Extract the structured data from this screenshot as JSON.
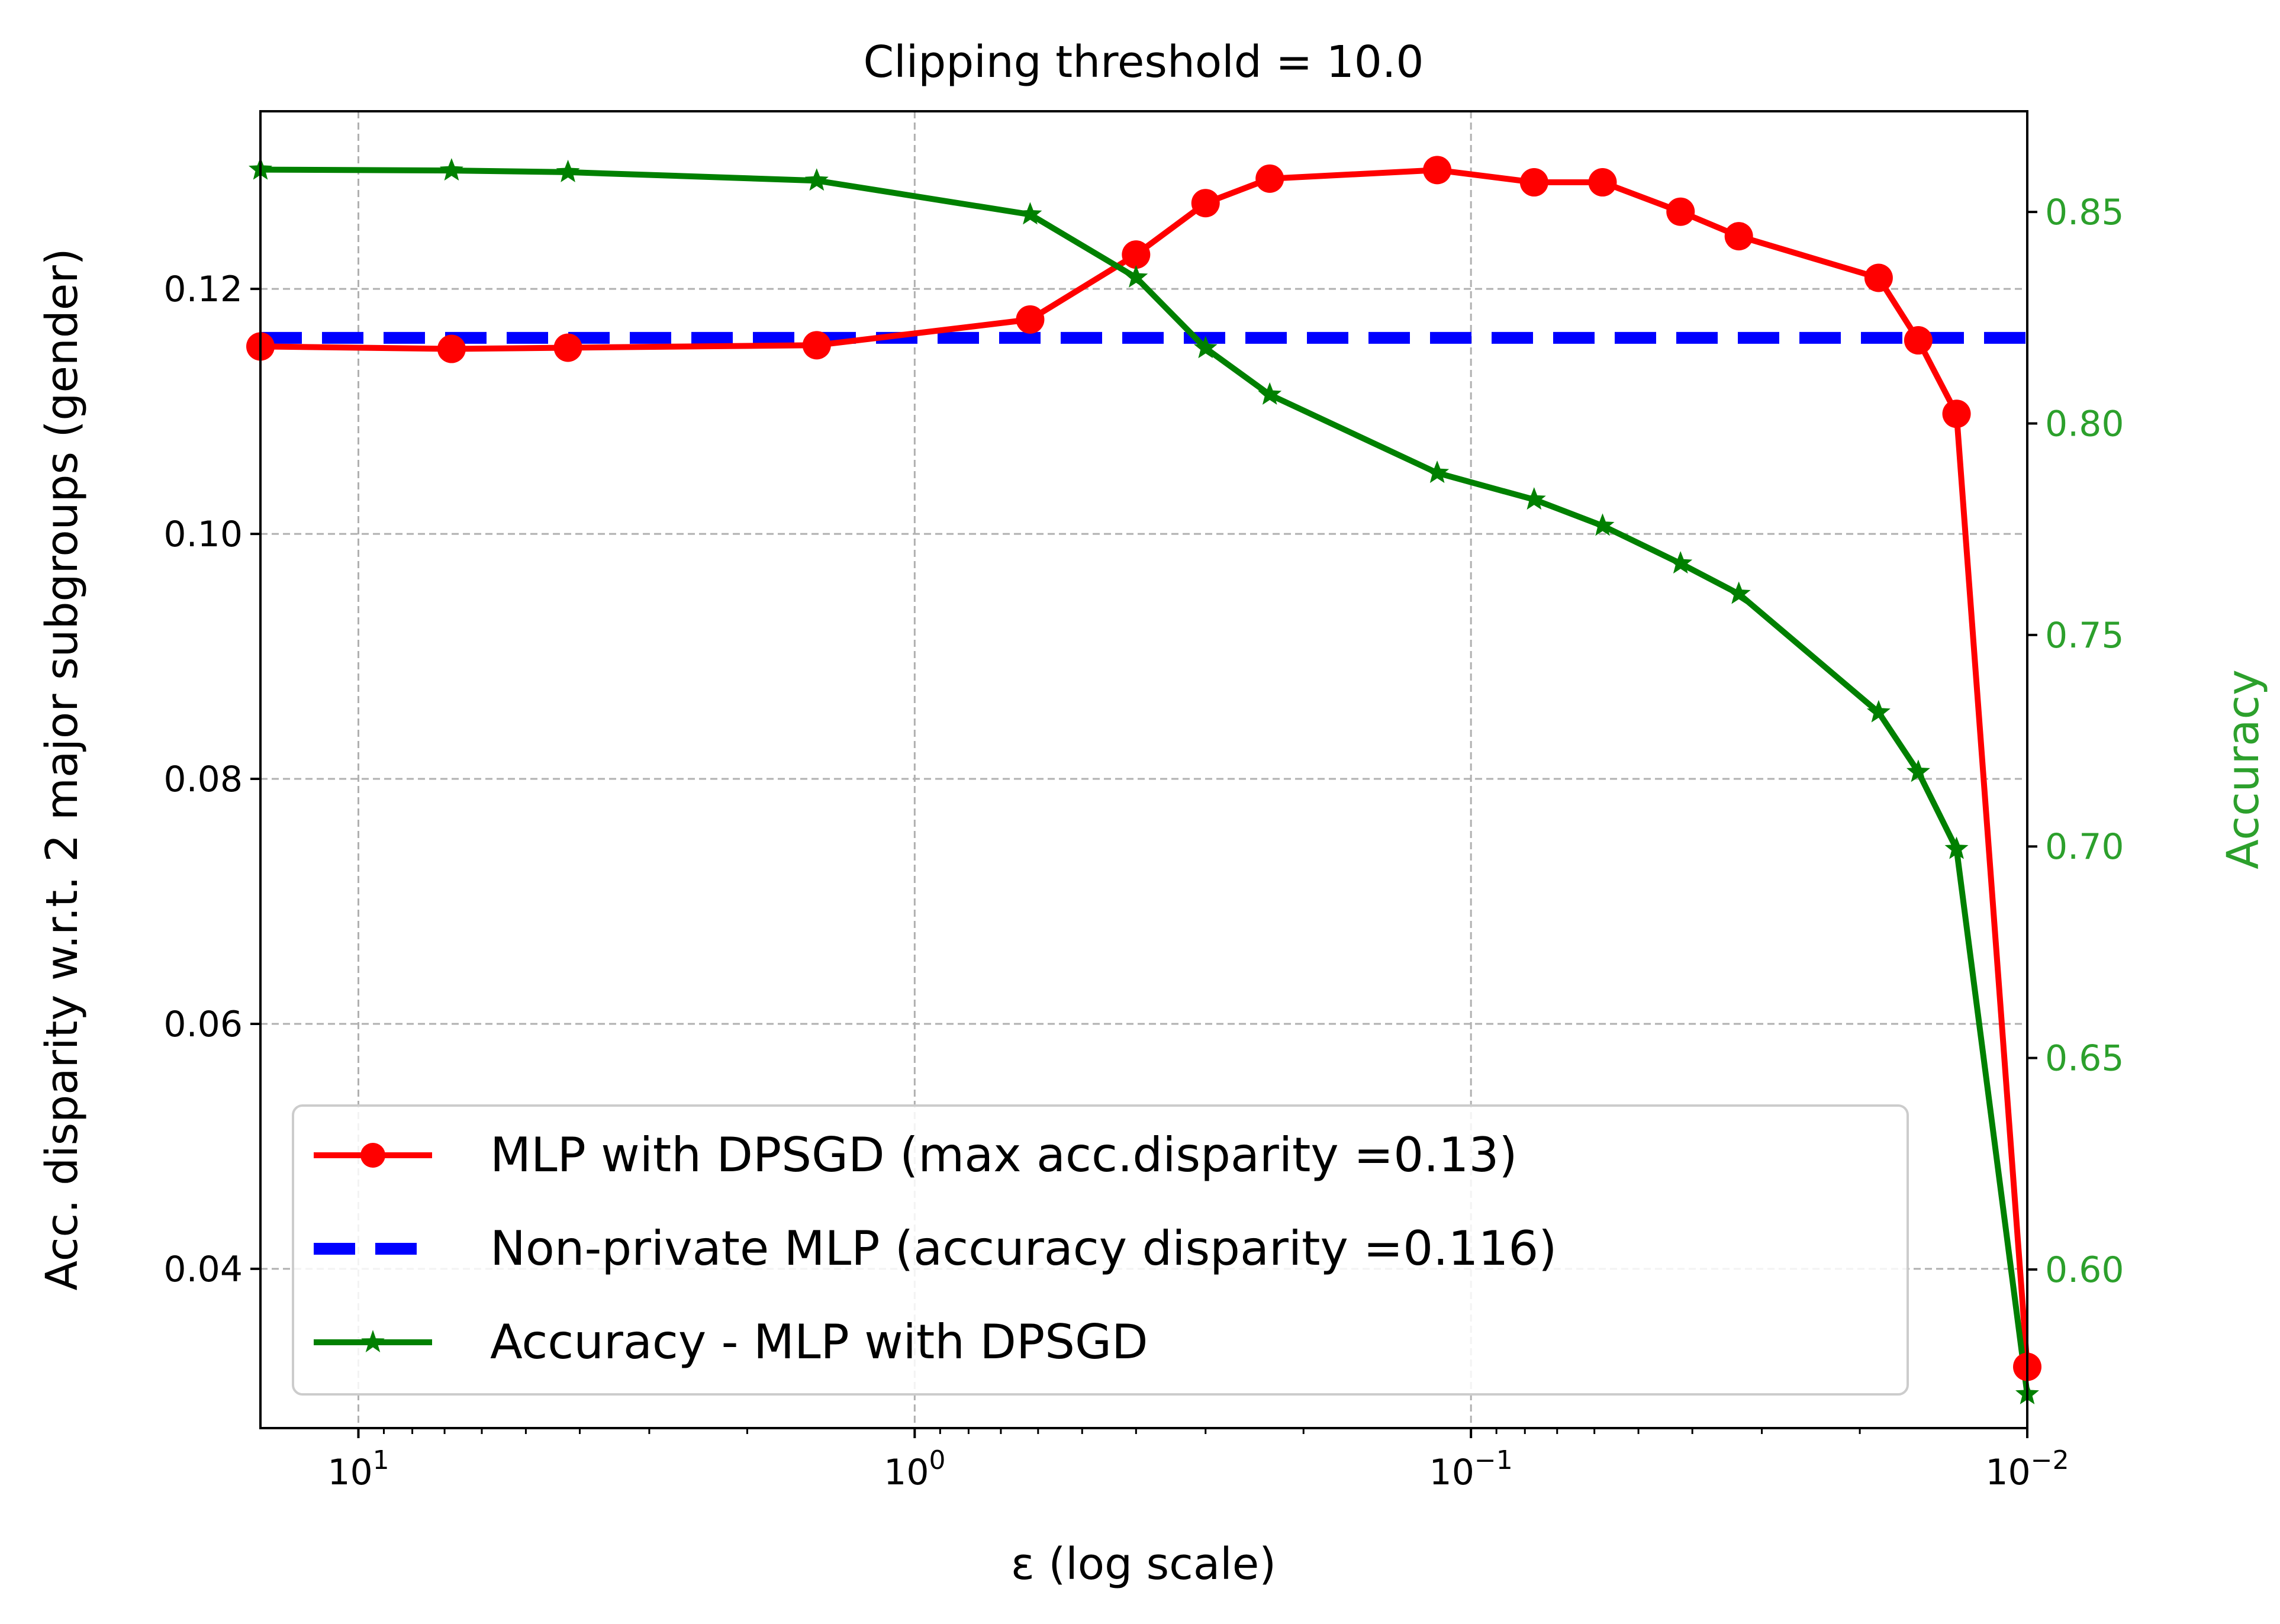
{
  "chart_data": {
    "type": "line",
    "title": "Clipping threshold = 10.0",
    "xlabel": "ε (log scale)",
    "ylabel": "Acc. disparity w.r.t. 2 major subgroups (gender)",
    "y2label": "Accuracy",
    "x_scale": "log",
    "x_reversed": true,
    "xlim": [
      15,
      0.01
    ],
    "ylim": [
      0.027,
      0.1345
    ],
    "y2lim": [
      0.5625,
      0.8738
    ],
    "grid": true,
    "legend_position": "lower-left",
    "x_ticks": [
      {
        "value": 10,
        "base": "10",
        "exp": "1"
      },
      {
        "value": 1,
        "base": "10",
        "exp": "0"
      },
      {
        "value": 0.1,
        "base": "10",
        "exp": "−1"
      },
      {
        "value": 0.01,
        "base": "10",
        "exp": "−2"
      }
    ],
    "y_ticks": [
      {
        "value": 0.04,
        "label": "0.04"
      },
      {
        "value": 0.06,
        "label": "0.06"
      },
      {
        "value": 0.08,
        "label": "0.08"
      },
      {
        "value": 0.1,
        "label": "0.10"
      },
      {
        "value": 0.12,
        "label": "0.12"
      }
    ],
    "y2_ticks": [
      {
        "value": 0.6,
        "label": "0.60"
      },
      {
        "value": 0.65,
        "label": "0.65"
      },
      {
        "value": 0.7,
        "label": "0.70"
      },
      {
        "value": 0.75,
        "label": "0.75"
      },
      {
        "value": 0.8,
        "label": "0.80"
      },
      {
        "value": 0.85,
        "label": "0.85"
      }
    ],
    "colors": {
      "disparity": "#ff0000",
      "baseline": "#0000ff",
      "accuracy": "#008000",
      "right_axis": "#2ca02c",
      "grid": "#b0b0b0"
    },
    "series": [
      {
        "name": "MLP with DPSGD (max acc.disparity =0.13)",
        "axis": "left",
        "marker": "circle",
        "x": [
          15,
          6.8,
          4.2,
          1.5,
          0.62,
          0.4,
          0.3,
          0.23,
          0.115,
          0.077,
          0.058,
          0.042,
          0.033,
          0.0185,
          0.0157,
          0.0134,
          0.01
        ],
        "values": [
          0.1153,
          0.1151,
          0.1152,
          0.1154,
          0.1175,
          0.1228,
          0.127,
          0.129,
          0.1297,
          0.1287,
          0.1287,
          0.1263,
          0.1243,
          0.1209,
          0.1158,
          0.1098,
          0.032
        ]
      },
      {
        "name": "Non-private MLP (accuracy disparity =0.116)",
        "axis": "left",
        "style": "dashed",
        "x": [
          15,
          0.01
        ],
        "values": [
          0.116,
          0.116
        ]
      },
      {
        "name": "Accuracy - MLP with DPSGD",
        "axis": "right",
        "marker": "star",
        "x": [
          15,
          6.8,
          4.2,
          1.5,
          0.62,
          0.4,
          0.3,
          0.23,
          0.115,
          0.077,
          0.058,
          0.042,
          0.033,
          0.0185,
          0.0157,
          0.0134,
          0.01
        ],
        "values": [
          0.86,
          0.8598,
          0.8594,
          0.8574,
          0.8494,
          0.8345,
          0.8178,
          0.8068,
          0.7883,
          0.782,
          0.7758,
          0.7669,
          0.7597,
          0.7317,
          0.7176,
          0.6994,
          0.5705
        ]
      }
    ]
  }
}
